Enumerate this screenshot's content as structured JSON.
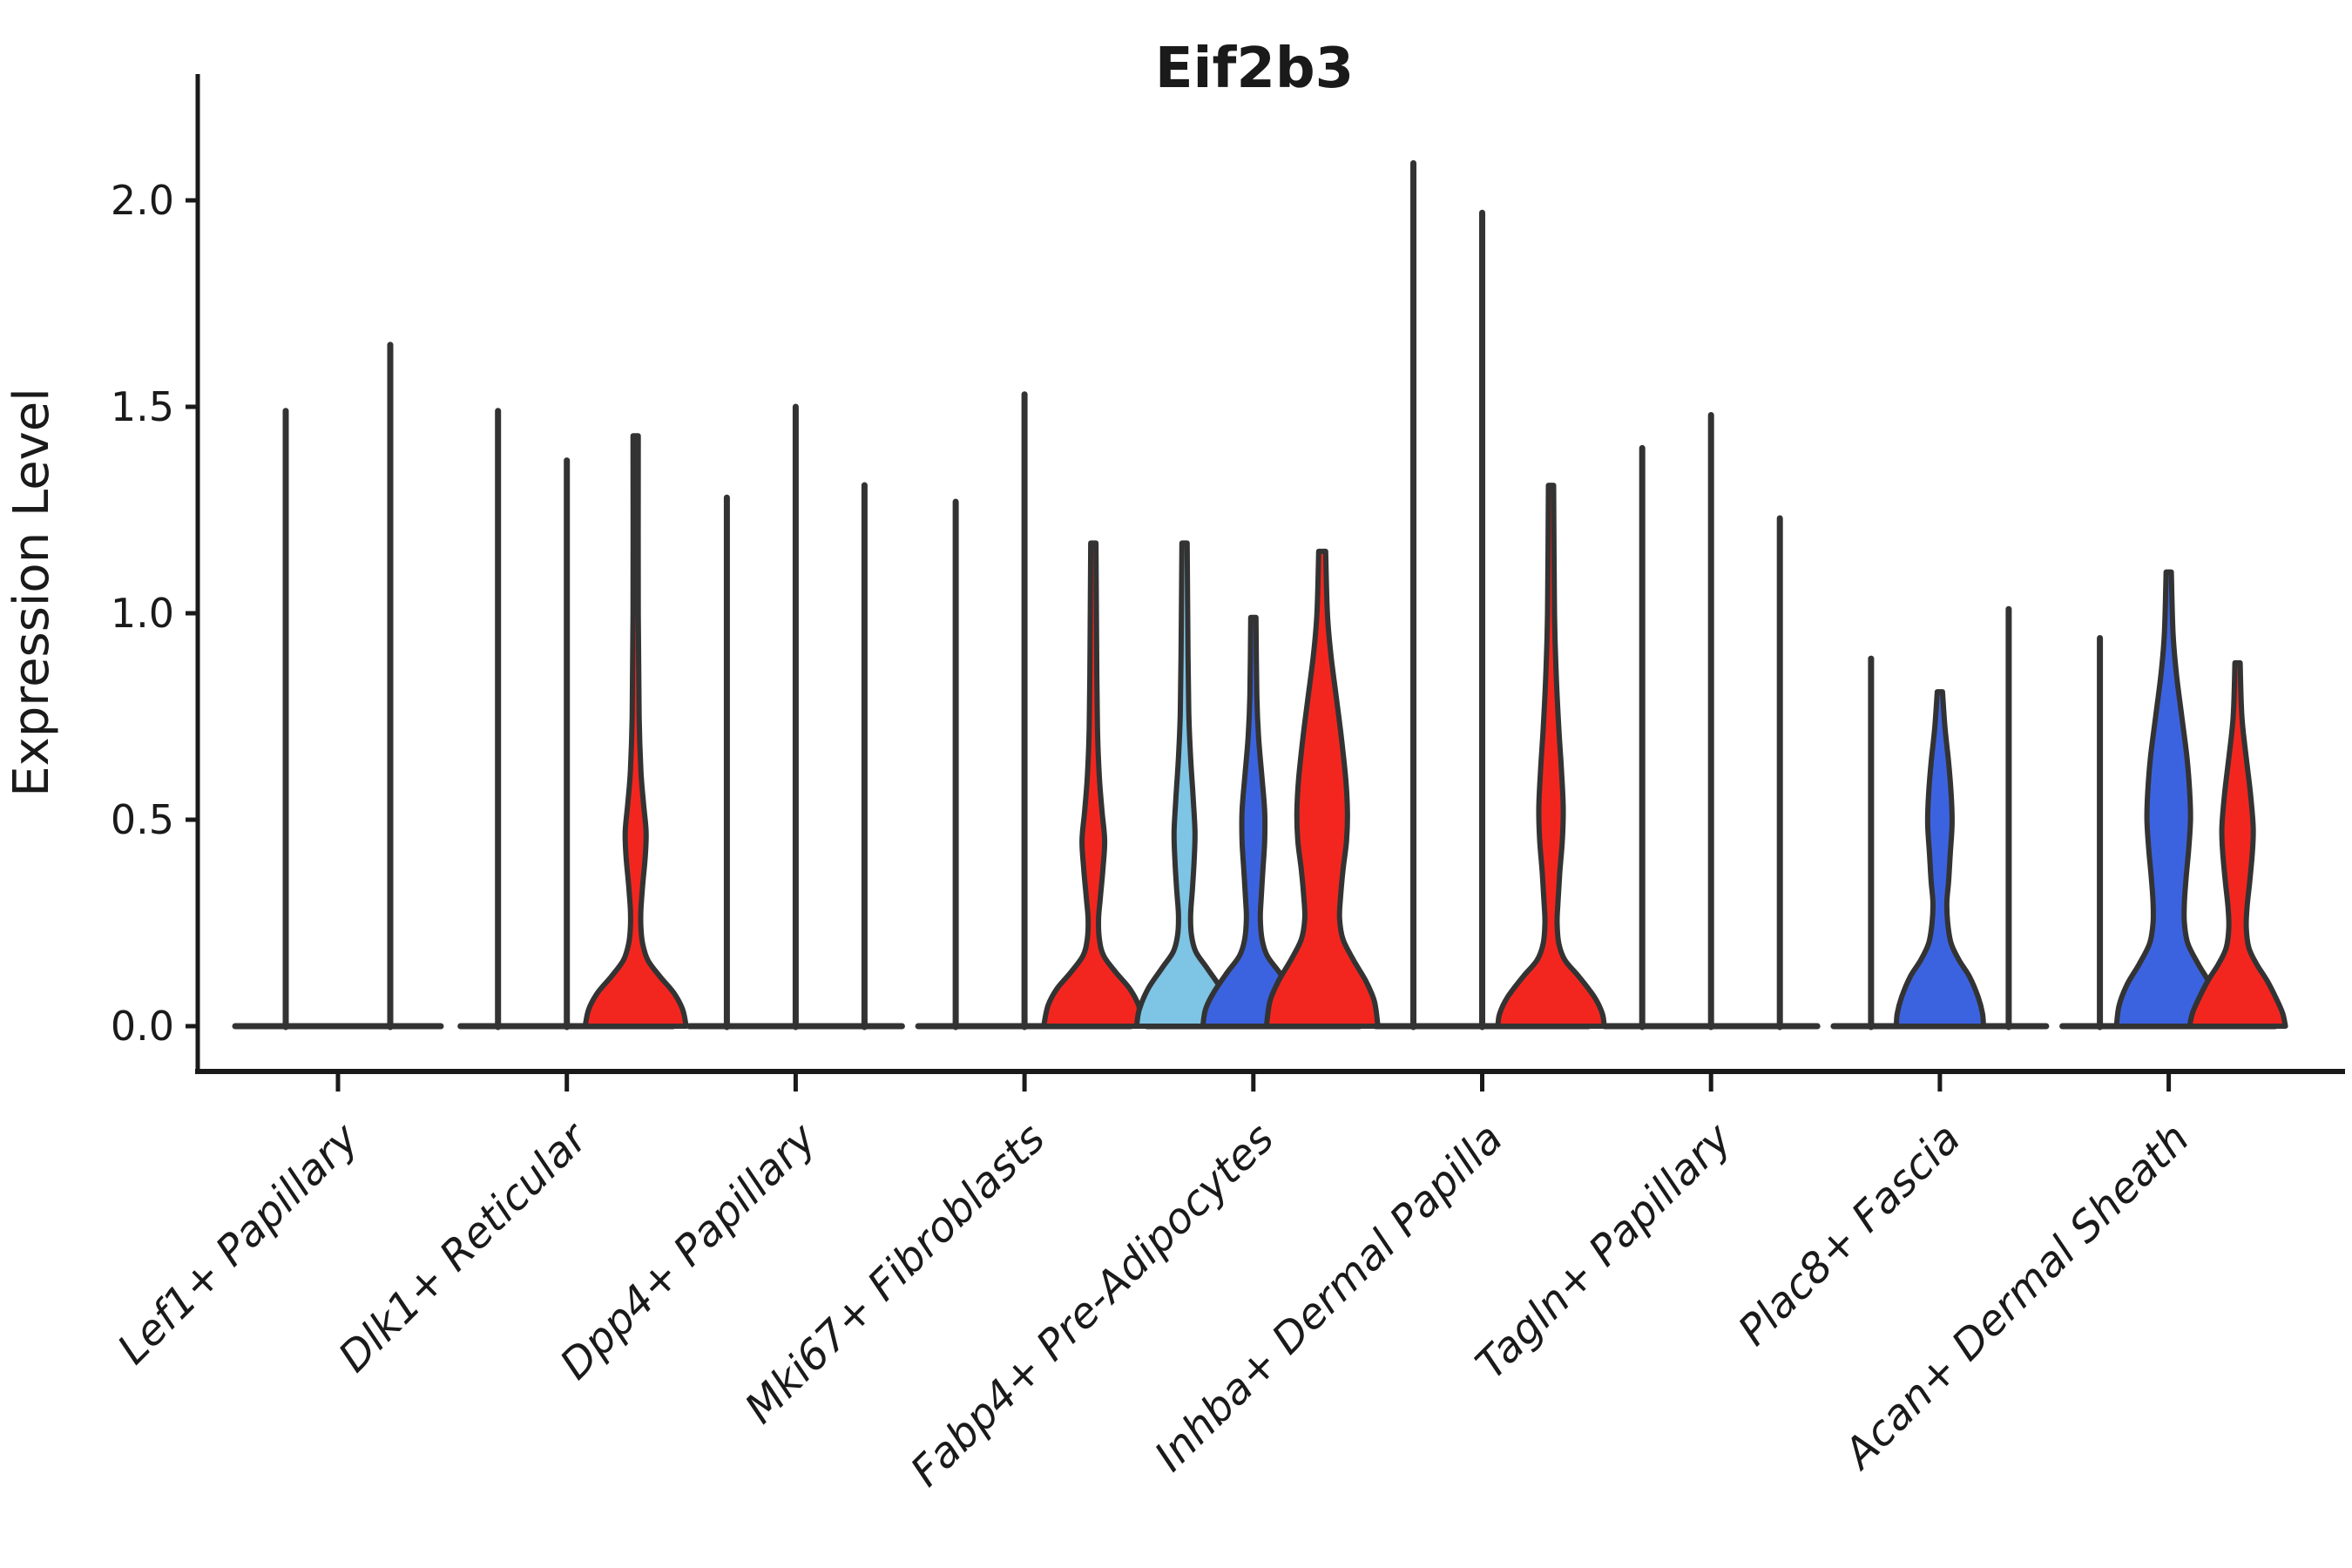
{
  "page": {
    "background": "#ffffff"
  },
  "chart_data": {
    "type": "violin",
    "title": "Eif2b3",
    "ylabel": "Expression Level",
    "xlabel": "",
    "ylim": [
      -0.12,
      2.31
    ],
    "yticks": [
      0.0,
      0.5,
      1.0,
      1.5,
      2.0
    ],
    "ytick_labels": [
      "0.0",
      "0.5",
      "1.0",
      "1.5",
      "2.0"
    ],
    "grid": "off",
    "legend": "none",
    "x_tick_rotation_deg": 45,
    "palette": {
      "lightblue": "#7EC4E4",
      "blue": "#3C63DF",
      "red": "#F3261F",
      "outline": "#333333",
      "axis": "#1a1a1a"
    },
    "categories": [
      "Lef1+ Papillary",
      "Dlk1+ Reticular",
      "Dpp4+ Papillary",
      "Mki67+ Fibroblasts",
      "Fabp4+ Pre-Adipocytes",
      "Inhba+ Dermal Papilla",
      "Tagln+ Papillary",
      "Plac8+ Fascia",
      "Acan+ Dermal Sheath"
    ],
    "groups": [
      {
        "category": "Lef1+ Papillary",
        "violins": [
          {
            "kind": "line",
            "color": "outline",
            "max": 1.49
          },
          {
            "kind": "line",
            "color": "outline",
            "max": 1.65
          }
        ]
      },
      {
        "category": "Dlk1+ Reticular",
        "violins": [
          {
            "kind": "line",
            "color": "outline",
            "max": 1.49
          },
          {
            "kind": "line",
            "color": "outline",
            "max": 1.37
          },
          {
            "kind": "violin",
            "color": "red",
            "max": 1.43,
            "profile": [
              [
                1.43,
                3
              ],
              [
                1.0,
                3
              ],
              [
                0.75,
                4
              ],
              [
                0.62,
                6
              ],
              [
                0.54,
                9
              ],
              [
                0.47,
                12
              ],
              [
                0.41,
                11
              ],
              [
                0.34,
                8
              ],
              [
                0.28,
                6
              ],
              [
                0.24,
                6
              ],
              [
                0.2,
                8
              ],
              [
                0.16,
                14
              ],
              [
                0.12,
                28
              ],
              [
                0.08,
                44
              ],
              [
                0.04,
                54
              ],
              [
                0.0,
                58
              ]
            ]
          }
        ]
      },
      {
        "category": "Dpp4+ Papillary",
        "violins": [
          {
            "kind": "line",
            "color": "outline",
            "max": 1.28
          },
          {
            "kind": "line",
            "color": "outline",
            "max": 1.5
          },
          {
            "kind": "line",
            "color": "outline",
            "max": 1.31
          }
        ]
      },
      {
        "category": "Mki67+ Fibroblasts",
        "violins": [
          {
            "kind": "line",
            "color": "outline",
            "max": 1.27
          },
          {
            "kind": "line",
            "color": "outline",
            "max": 1.53
          },
          {
            "kind": "violin",
            "color": "red",
            "max": 1.17,
            "profile": [
              [
                1.17,
                3
              ],
              [
                0.85,
                4
              ],
              [
                0.7,
                5
              ],
              [
                0.6,
                7
              ],
              [
                0.52,
                10
              ],
              [
                0.45,
                13
              ],
              [
                0.38,
                11
              ],
              [
                0.31,
                8
              ],
              [
                0.26,
                6
              ],
              [
                0.21,
                7
              ],
              [
                0.17,
                12
              ],
              [
                0.13,
                26
              ],
              [
                0.09,
                42
              ],
              [
                0.05,
                52
              ],
              [
                0.0,
                57
              ]
            ]
          }
        ]
      },
      {
        "category": "Fabp4+ Pre-Adipocytes",
        "violins": [
          {
            "kind": "violin",
            "color": "lightblue",
            "max": 1.17,
            "profile": [
              [
                1.17,
                3
              ],
              [
                0.9,
                4
              ],
              [
                0.75,
                5
              ],
              [
                0.65,
                7
              ],
              [
                0.55,
                10
              ],
              [
                0.47,
                12
              ],
              [
                0.4,
                11
              ],
              [
                0.33,
                9
              ],
              [
                0.27,
                7
              ],
              [
                0.22,
                8
              ],
              [
                0.18,
                13
              ],
              [
                0.14,
                26
              ],
              [
                0.09,
                42
              ],
              [
                0.04,
                52
              ],
              [
                0.0,
                55
              ]
            ]
          },
          {
            "kind": "violin",
            "color": "blue",
            "max": 0.99,
            "profile": [
              [
                0.99,
                3
              ],
              [
                0.8,
                4
              ],
              [
                0.7,
                6
              ],
              [
                0.6,
                10
              ],
              [
                0.52,
                13
              ],
              [
                0.45,
                13
              ],
              [
                0.38,
                11
              ],
              [
                0.31,
                9
              ],
              [
                0.26,
                8
              ],
              [
                0.21,
                10
              ],
              [
                0.17,
                16
              ],
              [
                0.13,
                30
              ],
              [
                0.08,
                46
              ],
              [
                0.04,
                55
              ],
              [
                0.0,
                58
              ]
            ]
          },
          {
            "kind": "violin",
            "color": "red",
            "max": 1.15,
            "profile": [
              [
                1.15,
                4
              ],
              [
                1.0,
                6
              ],
              [
                0.9,
                10
              ],
              [
                0.8,
                16
              ],
              [
                0.7,
                22
              ],
              [
                0.6,
                27
              ],
              [
                0.52,
                29
              ],
              [
                0.45,
                28
              ],
              [
                0.38,
                24
              ],
              [
                0.31,
                21
              ],
              [
                0.26,
                20
              ],
              [
                0.21,
                24
              ],
              [
                0.16,
                36
              ],
              [
                0.11,
                50
              ],
              [
                0.06,
                60
              ],
              [
                0.0,
                64
              ]
            ]
          }
        ]
      },
      {
        "category": "Inhba+ Dermal Papilla",
        "violins": [
          {
            "kind": "line",
            "color": "outline",
            "max": 2.09
          },
          {
            "kind": "line",
            "color": "outline",
            "max": 1.97
          },
          {
            "kind": "violin",
            "color": "red",
            "max": 1.31,
            "profile": [
              [
                1.31,
                3
              ],
              [
                1.0,
                4
              ],
              [
                0.85,
                6
              ],
              [
                0.72,
                9
              ],
              [
                0.62,
                12
              ],
              [
                0.53,
                14
              ],
              [
                0.45,
                13
              ],
              [
                0.37,
                10
              ],
              [
                0.3,
                8
              ],
              [
                0.25,
                7
              ],
              [
                0.2,
                9
              ],
              [
                0.16,
                16
              ],
              [
                0.12,
                32
              ],
              [
                0.07,
                50
              ],
              [
                0.03,
                59
              ],
              [
                0.0,
                61
              ]
            ]
          }
        ]
      },
      {
        "category": "Tagln+ Papillary",
        "violins": [
          {
            "kind": "line",
            "color": "outline",
            "max": 1.4
          },
          {
            "kind": "line",
            "color": "outline",
            "max": 1.48
          },
          {
            "kind": "line",
            "color": "outline",
            "max": 1.23
          }
        ]
      },
      {
        "category": "Plac8+ Fascia",
        "violins": [
          {
            "kind": "line",
            "color": "outline",
            "max": 0.89
          },
          {
            "kind": "violin",
            "color": "blue",
            "max": 0.81,
            "profile": [
              [
                0.81,
                3
              ],
              [
                0.72,
                6
              ],
              [
                0.64,
                10
              ],
              [
                0.56,
                13
              ],
              [
                0.49,
                14
              ],
              [
                0.42,
                12
              ],
              [
                0.35,
                10
              ],
              [
                0.3,
                8
              ],
              [
                0.25,
                9
              ],
              [
                0.2,
                13
              ],
              [
                0.16,
                22
              ],
              [
                0.12,
                34
              ],
              [
                0.07,
                44
              ],
              [
                0.03,
                49
              ],
              [
                0.0,
                50
              ]
            ]
          },
          {
            "kind": "line",
            "color": "outline",
            "max": 1.01
          }
        ]
      },
      {
        "category": "Acan+ Dermal Sheath",
        "violins": [
          {
            "kind": "line",
            "color": "outline",
            "max": 0.94
          },
          {
            "kind": "violin",
            "color": "blue",
            "max": 1.1,
            "profile": [
              [
                1.1,
                3
              ],
              [
                0.95,
                5
              ],
              [
                0.85,
                9
              ],
              [
                0.75,
                15
              ],
              [
                0.65,
                21
              ],
              [
                0.57,
                24
              ],
              [
                0.5,
                25
              ],
              [
                0.43,
                23
              ],
              [
                0.36,
                20
              ],
              [
                0.3,
                18
              ],
              [
                0.25,
                18
              ],
              [
                0.2,
                22
              ],
              [
                0.15,
                34
              ],
              [
                0.1,
                48
              ],
              [
                0.05,
                57
              ],
              [
                0.0,
                60
              ]
            ]
          },
          {
            "kind": "violin",
            "color": "red",
            "max": 0.88,
            "profile": [
              [
                0.88,
                3
              ],
              [
                0.75,
                5
              ],
              [
                0.65,
                10
              ],
              [
                0.56,
                15
              ],
              [
                0.48,
                18
              ],
              [
                0.42,
                17
              ],
              [
                0.35,
                14
              ],
              [
                0.29,
                11
              ],
              [
                0.24,
                10
              ],
              [
                0.19,
                13
              ],
              [
                0.15,
                22
              ],
              [
                0.11,
                34
              ],
              [
                0.06,
                46
              ],
              [
                0.03,
                52
              ],
              [
                0.0,
                55
              ]
            ]
          }
        ]
      }
    ]
  }
}
